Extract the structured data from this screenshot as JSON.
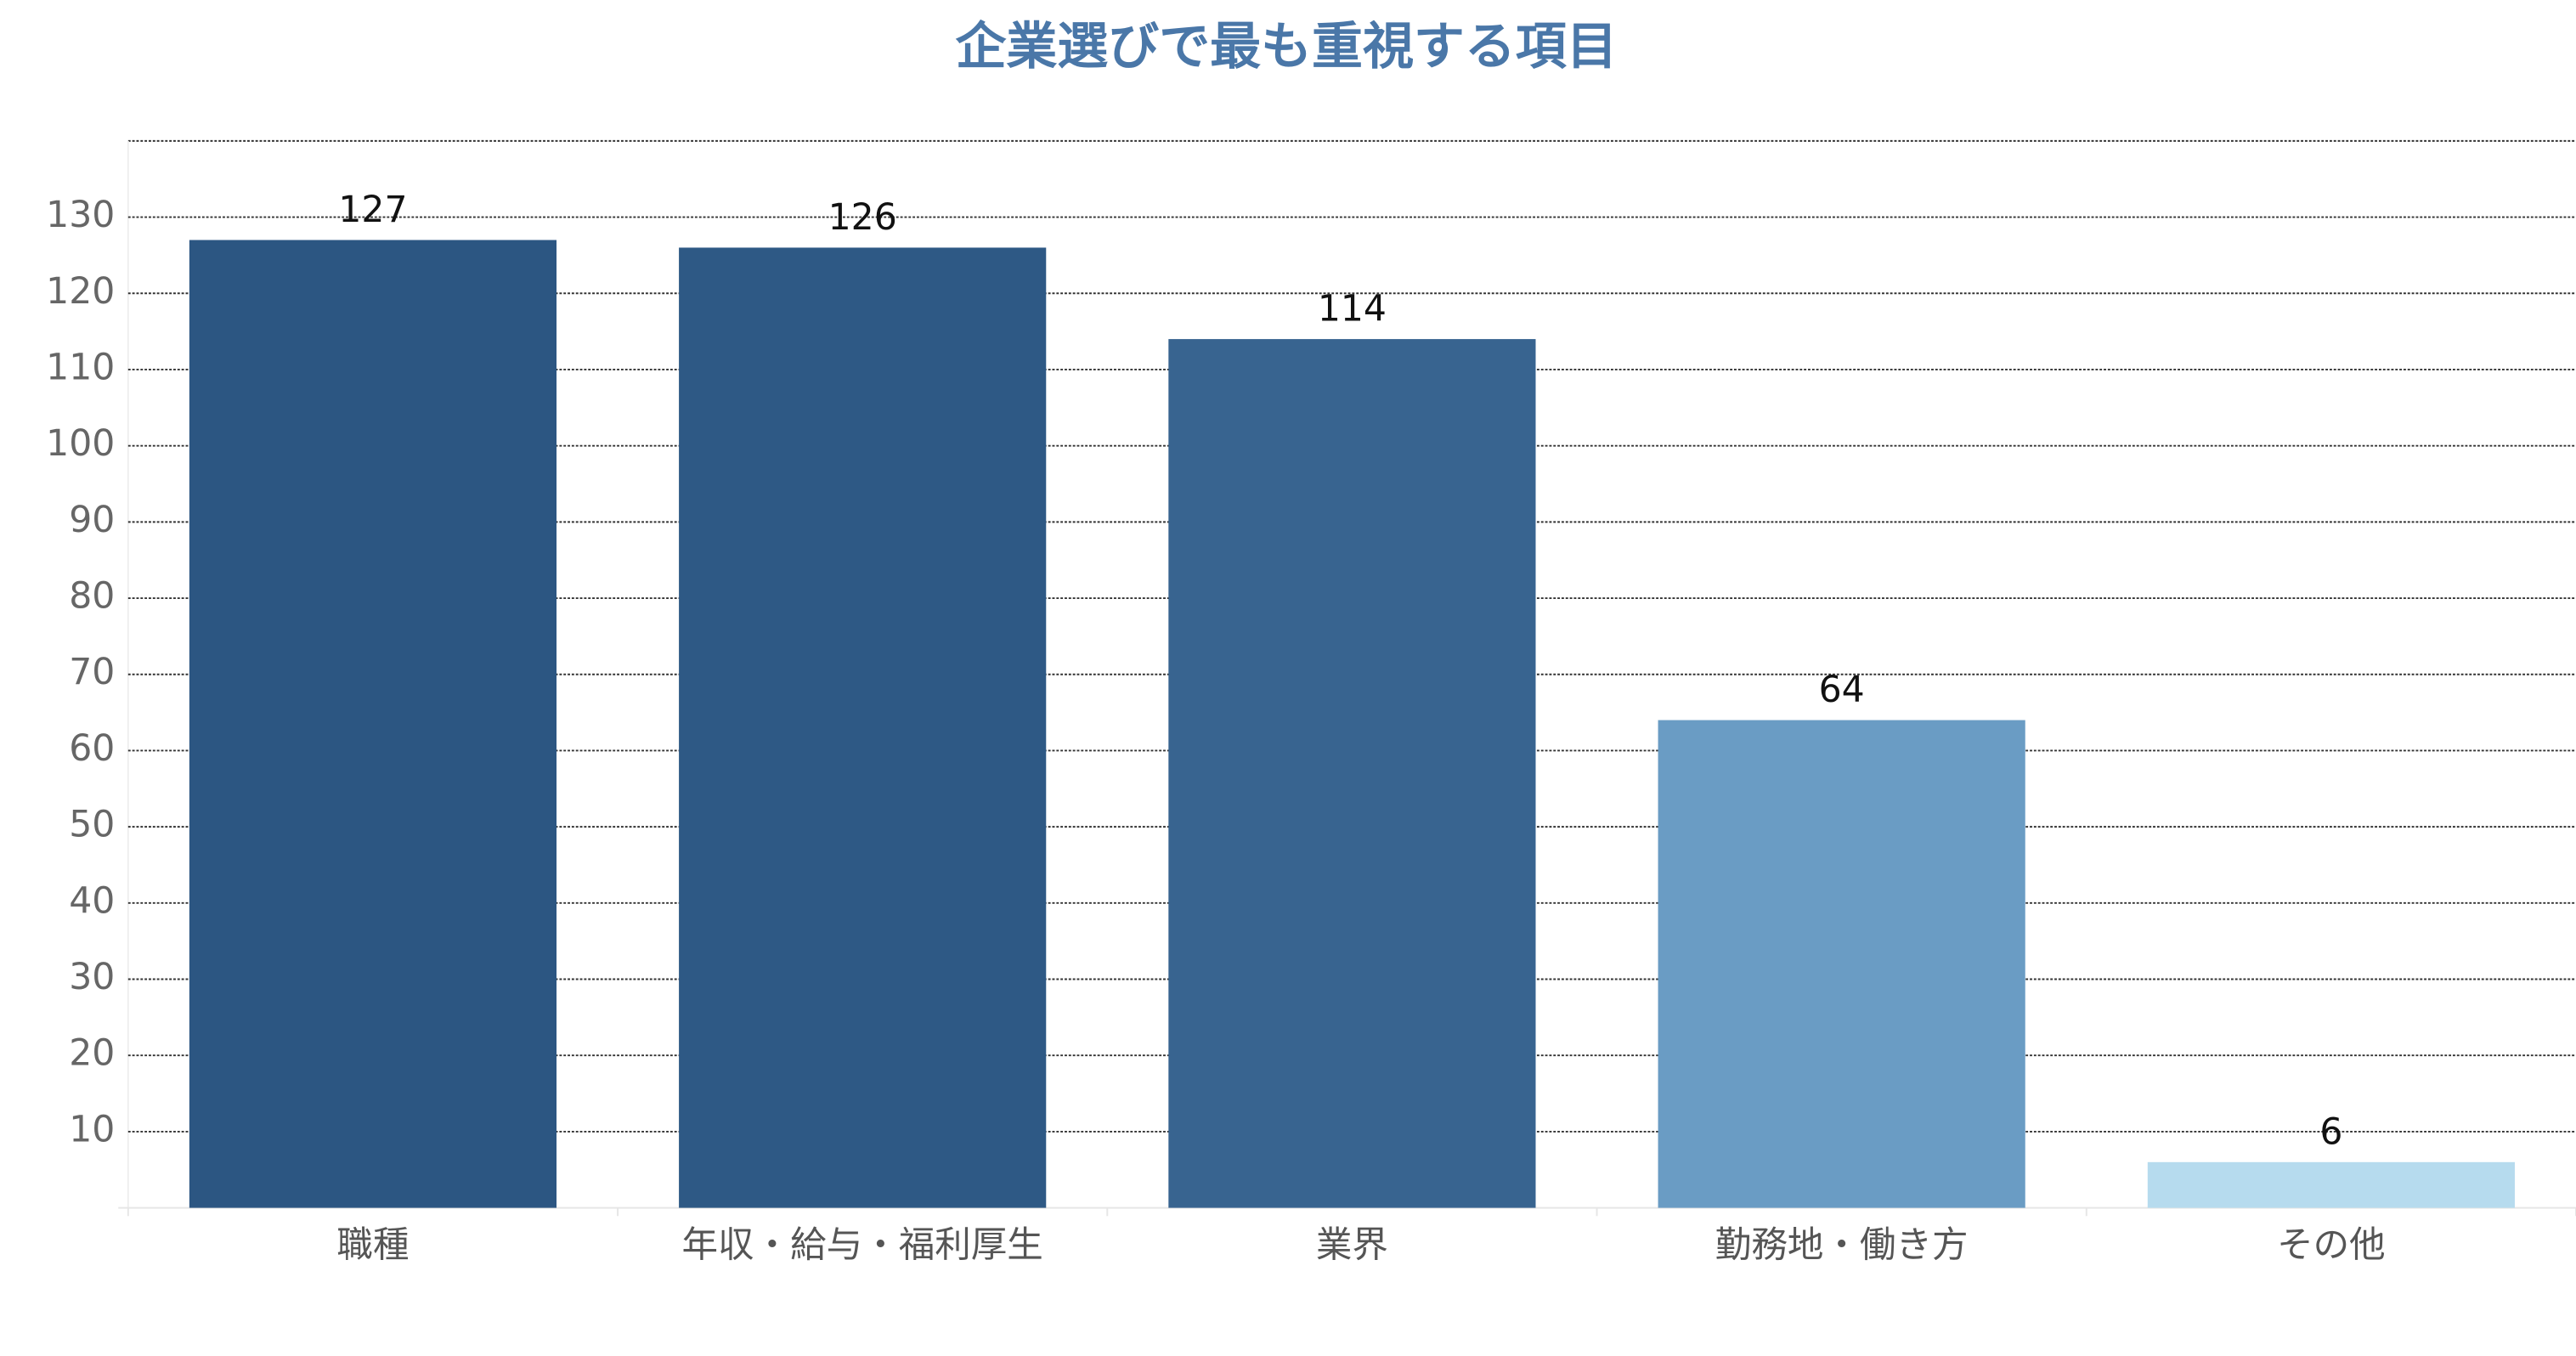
{
  "chart_data": {
    "type": "bar",
    "title": "企業選びで最も重視する項目",
    "categories": [
      "職種",
      "年収・給与・福利厚生",
      "業界",
      "勤務地・働き方",
      "その他"
    ],
    "values": [
      127,
      126,
      114,
      64,
      6
    ],
    "colors": [
      "#2c5682",
      "#2e5985",
      "#386490",
      "#6a9cc4",
      "#b6dbee"
    ],
    "ylim": [
      0,
      140
    ],
    "yticks": [
      10,
      20,
      30,
      40,
      50,
      60,
      70,
      80,
      90,
      100,
      110,
      120,
      130
    ],
    "grid": true
  }
}
